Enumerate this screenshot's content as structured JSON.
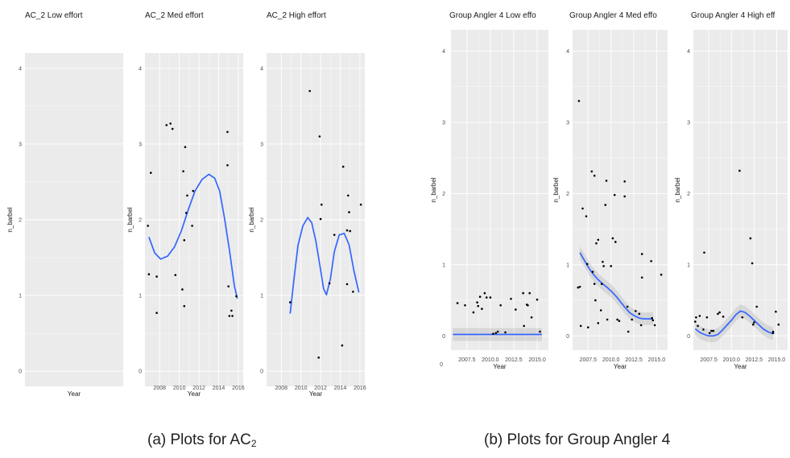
{
  "captions": {
    "left_main": "(a) Plots for AC",
    "left_sub": "2",
    "right": "(b) Plots for Group Angler 4"
  },
  "colors": {
    "panel_bg": "#ebebeb",
    "grid_major": "#ffffff",
    "point": "#000000",
    "smooth_line": "#3366ff",
    "ci_band": "#999999"
  },
  "chart_data": [
    {
      "type": "scatter",
      "title": "AC_2 Low effort",
      "xlabel": "Year",
      "ylabel": "n_barbel",
      "xlim": [
        2006.5,
        2016.5
      ],
      "ylim": [
        -0.2,
        4.2
      ],
      "xticks": [],
      "yticks": [
        0,
        1,
        2,
        3,
        4
      ],
      "grid": true,
      "points": [],
      "smooth": []
    },
    {
      "type": "scatter",
      "title": "AC_2 Med effort",
      "xlabel": "Year",
      "ylabel": "n_barbel",
      "xlim": [
        2006.5,
        2016.5
      ],
      "ylim": [
        -0.2,
        4.2
      ],
      "xticks": [
        "2008",
        "2010",
        "2012",
        "2014",
        "2016"
      ],
      "yticks": [
        0,
        1,
        2,
        3,
        4
      ],
      "grid": true,
      "points": [
        [
          2006.8,
          1.92
        ],
        [
          2006.9,
          1.28
        ],
        [
          2007.1,
          2.62
        ],
        [
          2007.7,
          1.25
        ],
        [
          2007.7,
          0.77
        ],
        [
          2008.7,
          3.25
        ],
        [
          2009.1,
          3.27
        ],
        [
          2009.3,
          3.2
        ],
        [
          2009.6,
          1.27
        ],
        [
          2010.3,
          1.08
        ],
        [
          2010.4,
          2.64
        ],
        [
          2010.5,
          0.86
        ],
        [
          2010.6,
          2.96
        ],
        [
          2010.5,
          1.73
        ],
        [
          2010.7,
          2.09
        ],
        [
          2010.8,
          2.32
        ],
        [
          2011.3,
          1.92
        ],
        [
          2011.4,
          2.38
        ],
        [
          2014.9,
          3.16
        ],
        [
          2014.9,
          2.72
        ],
        [
          2015.0,
          1.12
        ],
        [
          2015.1,
          0.73
        ],
        [
          2015.3,
          0.8
        ],
        [
          2015.4,
          0.73
        ],
        [
          2015.8,
          0.99
        ]
      ],
      "smooth": [
        [
          2006.9,
          1.77
        ],
        [
          2007.5,
          1.56
        ],
        [
          2008.1,
          1.48
        ],
        [
          2008.8,
          1.52
        ],
        [
          2009.5,
          1.64
        ],
        [
          2010.2,
          1.85
        ],
        [
          2010.9,
          2.13
        ],
        [
          2011.6,
          2.38
        ],
        [
          2012.3,
          2.53
        ],
        [
          2013.0,
          2.6
        ],
        [
          2013.6,
          2.55
        ],
        [
          2014.1,
          2.38
        ],
        [
          2014.6,
          2.02
        ],
        [
          2015.1,
          1.6
        ],
        [
          2015.6,
          1.13
        ],
        [
          2015.9,
          0.96
        ]
      ]
    },
    {
      "type": "scatter",
      "title": "AC_2 High effort",
      "xlabel": "Year",
      "ylabel": "n_barbel",
      "xlim": [
        2006.5,
        2016.5
      ],
      "ylim": [
        -0.2,
        4.2
      ],
      "xticks": [
        "2008",
        "2010",
        "2012",
        "2014",
        "2016"
      ],
      "yticks": [
        0,
        1,
        2,
        3,
        4
      ],
      "grid": true,
      "points": [
        [
          2008.9,
          0.91
        ],
        [
          2010.9,
          3.7
        ],
        [
          2011.8,
          0.18
        ],
        [
          2011.9,
          3.1
        ],
        [
          2012.0,
          2.01
        ],
        [
          2012.1,
          2.2
        ],
        [
          2012.9,
          1.16
        ],
        [
          2013.4,
          1.8
        ],
        [
          2014.2,
          0.34
        ],
        [
          2014.3,
          2.7
        ],
        [
          2014.7,
          1.15
        ],
        [
          2014.7,
          1.86
        ],
        [
          2014.8,
          2.32
        ],
        [
          2014.9,
          2.1
        ],
        [
          2015.0,
          1.85
        ],
        [
          2015.3,
          1.05
        ],
        [
          2016.1,
          2.2
        ]
      ],
      "smooth": [
        [
          2008.9,
          0.76
        ],
        [
          2009.3,
          1.23
        ],
        [
          2009.7,
          1.66
        ],
        [
          2010.2,
          1.92
        ],
        [
          2010.7,
          2.03
        ],
        [
          2011.1,
          1.96
        ],
        [
          2011.5,
          1.73
        ],
        [
          2011.9,
          1.42
        ],
        [
          2012.3,
          1.09
        ],
        [
          2012.6,
          1.01
        ],
        [
          2013.0,
          1.22
        ],
        [
          2013.4,
          1.58
        ],
        [
          2013.9,
          1.8
        ],
        [
          2014.4,
          1.82
        ],
        [
          2014.9,
          1.67
        ],
        [
          2015.4,
          1.32
        ],
        [
          2015.9,
          1.04
        ]
      ]
    },
    {
      "type": "scatter",
      "title": "Group Angler 4 Low effo",
      "xlabel": "Year",
      "ylabel": "n_barbel",
      "xlim": [
        2005.8,
        2016.2
      ],
      "ylim": [
        -0.2,
        4.3
      ],
      "xticks": [
        "2007.5",
        "2010.0",
        "2012.5",
        "2015.0"
      ],
      "yticks": [
        0,
        1,
        2,
        3,
        4
      ],
      "grid": true,
      "ci_band": true,
      "points": [
        [
          2006.5,
          0.46
        ],
        [
          2007.3,
          0.43
        ],
        [
          2008.2,
          0.33
        ],
        [
          2008.6,
          0.47
        ],
        [
          2008.7,
          0.42
        ],
        [
          2008.9,
          0.55
        ],
        [
          2009.1,
          0.38
        ],
        [
          2009.4,
          0.6
        ],
        [
          2009.6,
          0.54
        ],
        [
          2010.0,
          0.54
        ],
        [
          2010.3,
          0.03
        ],
        [
          2010.6,
          0.04
        ],
        [
          2010.8,
          0.06
        ],
        [
          2011.1,
          0.43
        ],
        [
          2011.6,
          0.05
        ],
        [
          2012.2,
          0.52
        ],
        [
          2012.7,
          0.37
        ],
        [
          2013.5,
          0.6
        ],
        [
          2013.6,
          0.14
        ],
        [
          2013.9,
          0.44
        ],
        [
          2014.0,
          0.43
        ],
        [
          2014.2,
          0.6
        ],
        [
          2014.4,
          0.26
        ],
        [
          2015.0,
          0.51
        ],
        [
          2015.3,
          0.06
        ]
      ],
      "smooth": [
        [
          2006.0,
          0.02
        ],
        [
          2015.5,
          0.02
        ]
      ]
    },
    {
      "type": "scatter",
      "title": "Group Angler 4 Med effo",
      "xlabel": "Year",
      "ylabel": "n_barbel",
      "xlim": [
        2005.8,
        2016.2
      ],
      "ylim": [
        -0.2,
        4.3
      ],
      "xticks": [
        "2007.5",
        "2010.0",
        "2012.5",
        "2015.0"
      ],
      "yticks": [
        0,
        1,
        2,
        3,
        4
      ],
      "grid": true,
      "ci_band": true,
      "points": [
        [
          2006.5,
          3.3
        ],
        [
          2006.4,
          0.68
        ],
        [
          2006.6,
          0.69
        ],
        [
          2006.7,
          0.14
        ],
        [
          2006.9,
          1.79
        ],
        [
          2007.3,
          1.68
        ],
        [
          2007.4,
          1.01
        ],
        [
          2007.5,
          0.12
        ],
        [
          2007.9,
          2.31
        ],
        [
          2008.2,
          2.25
        ],
        [
          2008.0,
          0.9
        ],
        [
          2008.2,
          0.73
        ],
        [
          2008.3,
          0.5
        ],
        [
          2008.4,
          1.3
        ],
        [
          2008.6,
          1.35
        ],
        [
          2008.6,
          0.18
        ],
        [
          2008.9,
          0.36
        ],
        [
          2009.0,
          0.73
        ],
        [
          2009.1,
          1.04
        ],
        [
          2009.2,
          0.98
        ],
        [
          2009.5,
          2.18
        ],
        [
          2009.4,
          1.84
        ],
        [
          2009.6,
          0.23
        ],
        [
          2010.0,
          0.98
        ],
        [
          2010.2,
          1.37
        ],
        [
          2010.4,
          1.98
        ],
        [
          2010.5,
          1.32
        ],
        [
          2010.7,
          0.23
        ],
        [
          2010.9,
          0.21
        ],
        [
          2011.5,
          2.17
        ],
        [
          2011.5,
          1.96
        ],
        [
          2011.8,
          0.41
        ],
        [
          2011.9,
          0.06
        ],
        [
          2012.3,
          0.23
        ],
        [
          2012.7,
          0.35
        ],
        [
          2013.1,
          0.31
        ],
        [
          2013.4,
          1.15
        ],
        [
          2013.4,
          0.82
        ],
        [
          2013.3,
          0.15
        ],
        [
          2014.4,
          1.05
        ],
        [
          2014.5,
          0.25
        ],
        [
          2014.8,
          0.15
        ],
        [
          2015.5,
          0.86
        ],
        [
          2014.6,
          0.22
        ]
      ],
      "smooth": [
        [
          2006.6,
          1.17
        ],
        [
          2007.1,
          1.06
        ],
        [
          2007.6,
          0.95
        ],
        [
          2008.1,
          0.86
        ],
        [
          2008.6,
          0.79
        ],
        [
          2009.1,
          0.73
        ],
        [
          2009.6,
          0.68
        ],
        [
          2010.1,
          0.62
        ],
        [
          2010.6,
          0.55
        ],
        [
          2011.1,
          0.47
        ],
        [
          2011.6,
          0.39
        ],
        [
          2012.1,
          0.32
        ],
        [
          2012.6,
          0.28
        ],
        [
          2013.1,
          0.25
        ],
        [
          2013.6,
          0.24
        ],
        [
          2014.1,
          0.24
        ],
        [
          2014.6,
          0.24
        ]
      ]
    },
    {
      "type": "scatter",
      "title": "Group Angler 4 High eff",
      "xlabel": "Year",
      "ylabel": "n_barbel",
      "xlim": [
        2005.8,
        2016.2
      ],
      "ylim": [
        -0.2,
        4.3
      ],
      "xticks": [
        "2007.5",
        "2010.0",
        "2012.5",
        "2015.0"
      ],
      "yticks": [
        0,
        1,
        2,
        3,
        4
      ],
      "grid": true,
      "ci_band": true,
      "points": [
        [
          2006.0,
          0.2
        ],
        [
          2006.1,
          0.26
        ],
        [
          2006.3,
          0.14
        ],
        [
          2006.5,
          0.28
        ],
        [
          2007.0,
          1.17
        ],
        [
          2006.9,
          0.09
        ],
        [
          2007.3,
          0.26
        ],
        [
          2007.6,
          0.04
        ],
        [
          2007.8,
          0.07
        ],
        [
          2008.0,
          0.07
        ],
        [
          2008.5,
          0.31
        ],
        [
          2008.7,
          0.33
        ],
        [
          2009.1,
          0.27
        ],
        [
          2010.9,
          2.32
        ],
        [
          2011.2,
          0.26
        ],
        [
          2012.1,
          1.37
        ],
        [
          2012.3,
          1.02
        ],
        [
          2012.4,
          0.16
        ],
        [
          2012.5,
          0.19
        ],
        [
          2012.8,
          0.41
        ],
        [
          2014.6,
          0.06
        ],
        [
          2014.6,
          0.04
        ],
        [
          2014.9,
          0.34
        ],
        [
          2015.2,
          0.16
        ]
      ],
      "smooth": [
        [
          2006.0,
          0.1
        ],
        [
          2006.5,
          0.05
        ],
        [
          2007.0,
          0.02
        ],
        [
          2007.5,
          0.0
        ],
        [
          2008.0,
          0.0
        ],
        [
          2008.5,
          0.02
        ],
        [
          2009.0,
          0.08
        ],
        [
          2009.5,
          0.15
        ],
        [
          2010.0,
          0.22
        ],
        [
          2010.5,
          0.3
        ],
        [
          2011.0,
          0.35
        ],
        [
          2011.5,
          0.33
        ],
        [
          2012.0,
          0.28
        ],
        [
          2012.5,
          0.22
        ],
        [
          2013.0,
          0.16
        ],
        [
          2013.5,
          0.1
        ],
        [
          2014.0,
          0.06
        ],
        [
          2014.6,
          0.03
        ]
      ]
    }
  ]
}
